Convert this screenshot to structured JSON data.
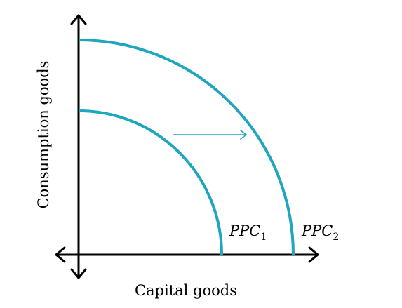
{
  "diagram": {
    "x_axis_label": "Capital goods",
    "y_axis_label": "Consumption goods",
    "curves": [
      {
        "name": "PPC",
        "subscript": "1"
      },
      {
        "name": "PPC",
        "subscript": "2"
      }
    ],
    "colors": {
      "curve": "#1fa6bf",
      "axes": "#000000",
      "background": "#ffffff"
    },
    "shift_direction": "right"
  }
}
